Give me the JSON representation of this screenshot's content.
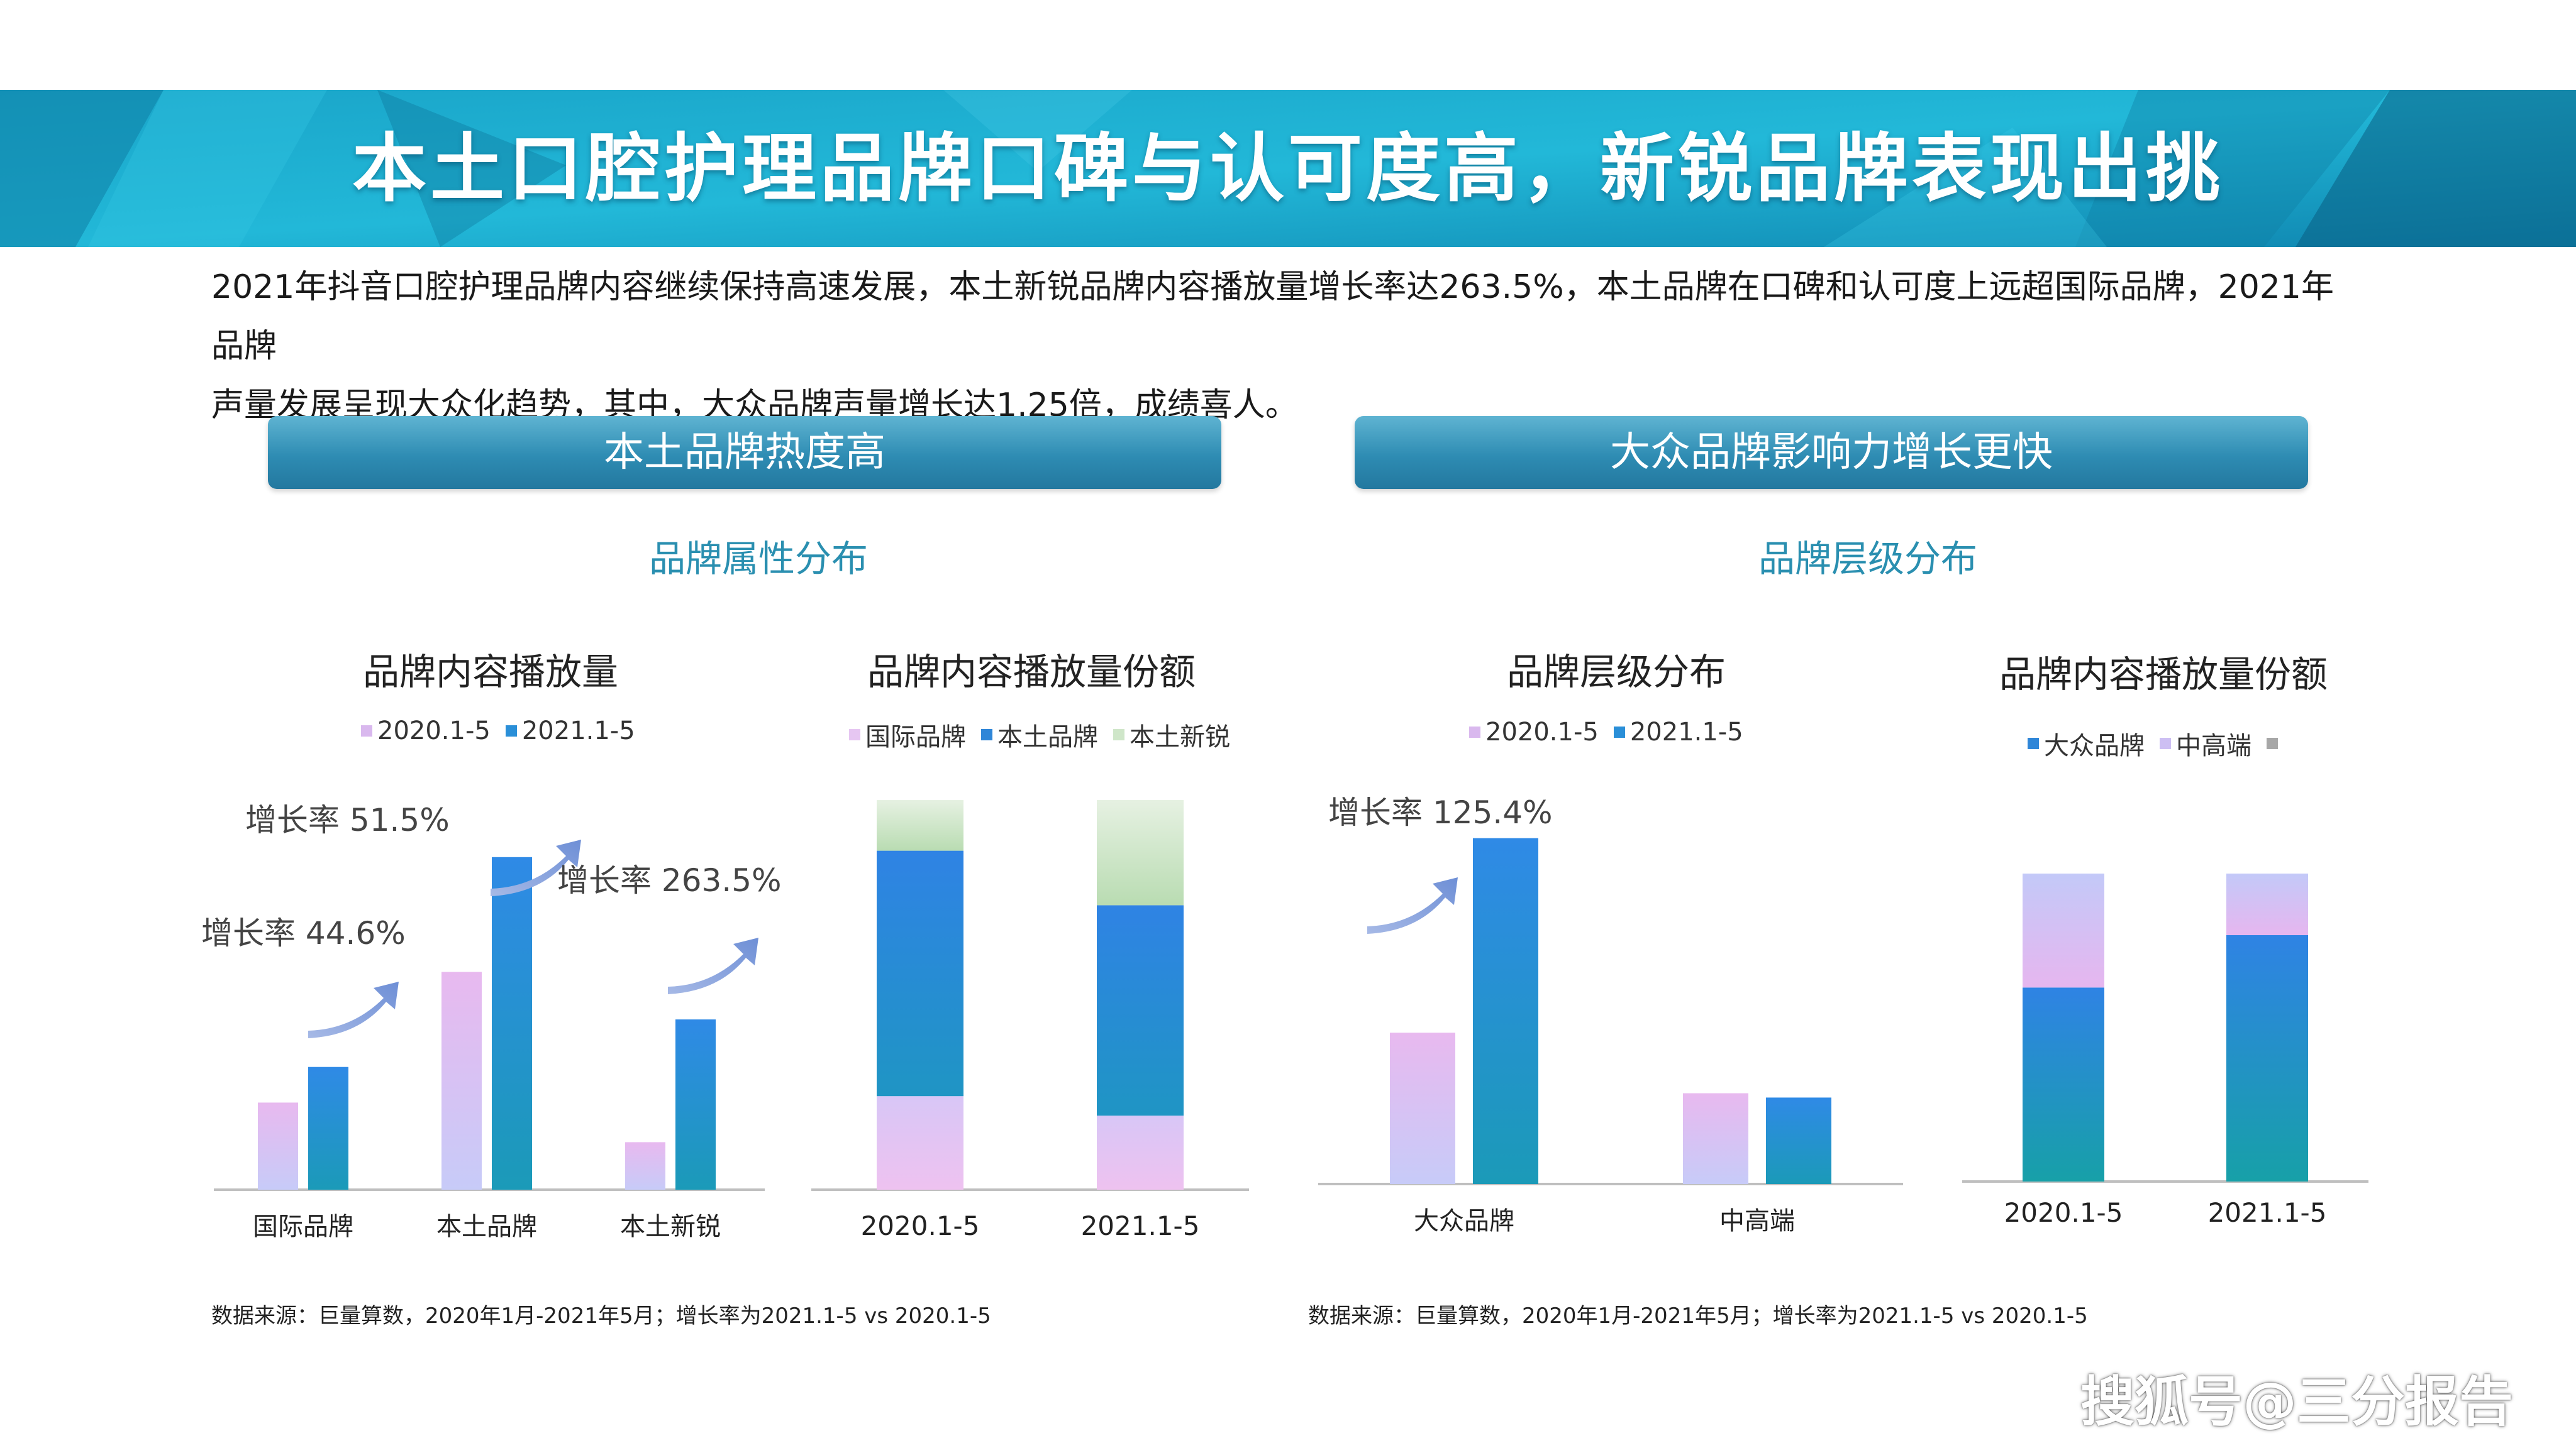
{
  "header": {
    "title": "本土口腔护理品牌口碑与认可度高，新锐品牌表现出挑"
  },
  "summary": {
    "line1": "2021年抖音口腔护理品牌内容继续保持高速发展，本土新锐品牌内容播放量增长率达263.5%，本土品牌在口碑和认可度上远超国际品牌，2021年品牌",
    "line2": "声量发展呈现大众化趋势，其中，大众品牌声量增长达1.25倍，成绩喜人。"
  },
  "left_section": {
    "pill": "本土品牌热度高",
    "subtitle": "品牌属性分布",
    "source": "数据来源：巨量算数，2020年1月-2021年5月；增长率为2021.1-5 vs 2020.1-5"
  },
  "right_section": {
    "pill": "大众品牌影响力增长更快",
    "subtitle": "品牌层级分布",
    "source": "数据来源：巨量算数，2020年1月-2021年5月；增长率为2021.1-5 vs 2020.1-5"
  },
  "colors": {
    "series_2020": "#d9b8ee",
    "series_2021": "#2a8fd8",
    "international": "#e6c6f2",
    "local": "#2f86d8",
    "local_new": "#cfe6c9",
    "mass": "#2f86d8",
    "midhigh": "#cdbff3",
    "other": "#a7a7a7",
    "arrow": "#8fa9dc"
  },
  "watermark": "搜狐号@三分报告",
  "chart_data": [
    {
      "type": "bar",
      "title": "品牌内容播放量",
      "categories": [
        "国际品牌",
        "本土品牌",
        "本土新锐"
      ],
      "series": [
        {
          "name": "2020.1-5",
          "values": [
            22,
            55,
            12
          ]
        },
        {
          "name": "2021.1-5",
          "values": [
            31,
            84,
            43
          ]
        }
      ],
      "annotations": [
        "增长率 44.6%",
        "增长率 51.5%",
        "增长率 263.5%"
      ],
      "legend_position": "top",
      "grid": false
    },
    {
      "type": "bar",
      "stacked": true,
      "title": "品牌内容播放量份额",
      "categories": [
        "2020.1-5",
        "2021.1-5"
      ],
      "series": [
        {
          "name": "国际品牌",
          "values": [
            24,
            19
          ]
        },
        {
          "name": "本土品牌",
          "values": [
            63,
            54
          ]
        },
        {
          "name": "本土新锐",
          "values": [
            13,
            27
          ]
        }
      ],
      "legend_position": "top",
      "grid": false
    },
    {
      "type": "bar",
      "title": "品牌层级分布",
      "categories": [
        "大众品牌",
        "中高端"
      ],
      "series": [
        {
          "name": "2020.1-5",
          "values": [
            35,
            21
          ]
        },
        {
          "name": "2021.1-5",
          "values": [
            80,
            20
          ]
        }
      ],
      "annotations": [
        "增长率 125.4%"
      ],
      "legend_position": "top",
      "grid": false
    },
    {
      "type": "bar",
      "stacked": true,
      "title": "品牌内容播放量份额",
      "categories": [
        "2020.1-5",
        "2021.1-5"
      ],
      "series": [
        {
          "name": "大众品牌",
          "values": [
            63,
            80
          ]
        },
        {
          "name": "中高端",
          "values": [
            37,
            20
          ]
        },
        {
          "name": "",
          "values": [
            0,
            0
          ]
        }
      ],
      "legend_position": "top",
      "grid": false
    }
  ]
}
